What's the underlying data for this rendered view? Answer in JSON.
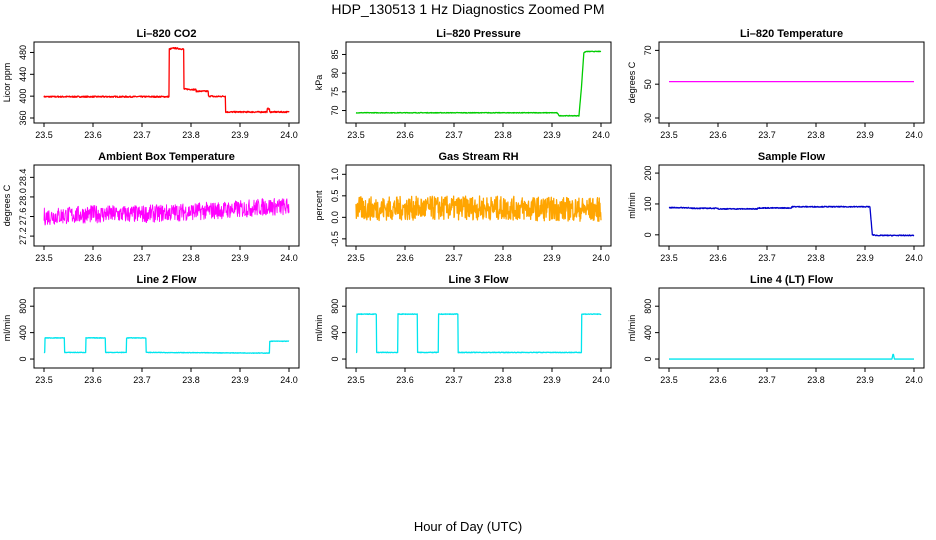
{
  "figure": {
    "title": "HDP_130513  1 Hz Diagnostics Zoomed PM",
    "xlabel": "Hour of Day (UTC)"
  },
  "chart_data": [
    {
      "type": "line",
      "title": "Li–820 CO2",
      "ylabel": "Licor ppm",
      "xlim": [
        23.5,
        24.0
      ],
      "ylim": [
        360,
        490
      ],
      "xticks": [
        "23.5",
        "23.6",
        "23.7",
        "23.8",
        "23.9",
        "24.0"
      ],
      "yticks": [
        "360",
        "400",
        "440",
        "480"
      ],
      "color": "#ff0000",
      "noise": 1.2,
      "series": [
        {
          "x": [
            23.5,
            23.755,
            23.755,
            23.765,
            23.775,
            23.785,
            23.785,
            23.81,
            23.81,
            23.835,
            23.835,
            23.845,
            23.845,
            23.87,
            23.87,
            23.955,
            23.955,
            23.96,
            23.96,
            24.0
          ],
          "y": [
            399,
            399,
            486,
            488,
            487,
            486,
            413,
            412,
            409,
            409,
            400,
            400,
            399,
            400,
            371,
            371,
            378,
            376,
            371,
            371
          ]
        }
      ]
    },
    {
      "type": "line",
      "title": "Li–820 Pressure",
      "ylabel": "kPa",
      "xlim": [
        23.5,
        24.0
      ],
      "ylim": [
        68,
        87
      ],
      "xticks": [
        "23.5",
        "23.6",
        "23.7",
        "23.8",
        "23.9",
        "24.0"
      ],
      "yticks": [
        "70",
        "75",
        "80",
        "85"
      ],
      "color": "#00cc00",
      "noise": 0.08,
      "series": [
        {
          "x": [
            23.5,
            23.91,
            23.915,
            23.955,
            23.96,
            23.965,
            23.97,
            24.0
          ],
          "y": [
            69.4,
            69.4,
            68.6,
            68.6,
            76,
            85.5,
            85.8,
            85.8
          ]
        }
      ]
    },
    {
      "type": "line",
      "title": "Li–820 Temperature",
      "ylabel": "degrees C",
      "xlim": [
        23.5,
        24.0
      ],
      "ylim": [
        30,
        72
      ],
      "xticks": [
        "23.5",
        "23.6",
        "23.7",
        "23.8",
        "23.9",
        "24.0"
      ],
      "yticks": [
        "30",
        "50",
        "70"
      ],
      "color": "#ff00ff",
      "noise": 0,
      "series": [
        {
          "x": [
            23.5,
            24.0
          ],
          "y": [
            51.5,
            51.5
          ]
        }
      ]
    },
    {
      "type": "line",
      "title": "Ambient Box Temperature",
      "ylabel": "degrees C",
      "xlim": [
        23.5,
        24.0
      ],
      "ylim": [
        27.1,
        28.55
      ],
      "xticks": [
        "23.5",
        "23.6",
        "23.7",
        "23.8",
        "23.9",
        "24.0"
      ],
      "yticks": [
        "27.2",
        "27.6",
        "28.0",
        "28.4"
      ],
      "color": "#ff00ff",
      "noise": 0.18,
      "series": [
        {
          "x": [
            23.5,
            23.6,
            23.7,
            23.8,
            23.9,
            23.95,
            24.0
          ],
          "y": [
            27.6,
            27.65,
            27.65,
            27.7,
            27.75,
            27.8,
            27.8
          ]
        }
      ]
    },
    {
      "type": "line",
      "title": "Gas Stream RH",
      "ylabel": "percent",
      "xlim": [
        23.5,
        24.0
      ],
      "ylim": [
        -0.55,
        1.1
      ],
      "xticks": [
        "23.5",
        "23.6",
        "23.7",
        "23.8",
        "23.9",
        "24.0"
      ],
      "yticks": [
        "-0.5",
        "0.0",
        "0.5",
        "1.0"
      ],
      "color": "#ffa500",
      "noise": 0.28,
      "series": [
        {
          "x": [
            23.5,
            23.75,
            24.0
          ],
          "y": [
            0.2,
            0.22,
            0.18
          ]
        }
      ]
    },
    {
      "type": "line",
      "title": "Sample Flow",
      "ylabel": "ml/min",
      "xlim": [
        23.5,
        24.0
      ],
      "ylim": [
        -20,
        210
      ],
      "xticks": [
        "23.5",
        "23.6",
        "23.7",
        "23.8",
        "23.9",
        "24.0"
      ],
      "yticks": [
        "0",
        "100",
        "200"
      ],
      "color": "#0000cc",
      "noise": 1.5,
      "series": [
        {
          "x": [
            23.5,
            23.54,
            23.54,
            23.6,
            23.6,
            23.68,
            23.68,
            23.75,
            23.75,
            23.91,
            23.915,
            23.925,
            24.0
          ],
          "y": [
            88,
            88,
            86,
            86,
            84,
            84,
            87,
            87,
            91,
            91,
            0,
            -2,
            -2
          ]
        }
      ]
    },
    {
      "type": "line",
      "title": "Line 2 Flow",
      "ylabel": "ml/min",
      "xlim": [
        23.5,
        24.0
      ],
      "ylim": [
        -60,
        1000
      ],
      "xticks": [
        "23.5",
        "23.6",
        "23.7",
        "23.8",
        "23.9",
        "24.0"
      ],
      "yticks": [
        "0",
        "400",
        "800"
      ],
      "color": "#00e5ee",
      "noise": 4,
      "series": [
        {
          "x": [
            23.5,
            23.502,
            23.502,
            23.542,
            23.542,
            23.585,
            23.585,
            23.625,
            23.625,
            23.668,
            23.668,
            23.708,
            23.708,
            23.96,
            23.96,
            24.0
          ],
          "y": [
            100,
            100,
            320,
            320,
            100,
            100,
            320,
            320,
            100,
            100,
            320,
            320,
            100,
            90,
            270,
            270
          ]
        }
      ]
    },
    {
      "type": "line",
      "title": "Line 3 Flow",
      "ylabel": "ml/min",
      "xlim": [
        23.5,
        24.0
      ],
      "ylim": [
        -60,
        1000
      ],
      "xticks": [
        "23.5",
        "23.6",
        "23.7",
        "23.8",
        "23.9",
        "24.0"
      ],
      "yticks": [
        "0",
        "400",
        "800"
      ],
      "color": "#00e5ee",
      "noise": 5,
      "series": [
        {
          "x": [
            23.5,
            23.502,
            23.502,
            23.542,
            23.542,
            23.585,
            23.585,
            23.625,
            23.625,
            23.668,
            23.668,
            23.708,
            23.708,
            23.96,
            23.96,
            24.0
          ],
          "y": [
            100,
            100,
            680,
            680,
            100,
            100,
            680,
            680,
            100,
            100,
            680,
            680,
            100,
            100,
            680,
            680
          ]
        }
      ]
    },
    {
      "type": "line",
      "title": "Line 4 (LT) Flow",
      "ylabel": "ml/min",
      "xlim": [
        23.5,
        24.0
      ],
      "ylim": [
        -60,
        1000
      ],
      "xticks": [
        "23.5",
        "23.6",
        "23.7",
        "23.8",
        "23.9",
        "24.0"
      ],
      "yticks": [
        "0",
        "400",
        "800"
      ],
      "color": "#00e5ee",
      "noise": 0,
      "series": [
        {
          "x": [
            23.5,
            23.955,
            23.957,
            23.958,
            23.96,
            24.0
          ],
          "y": [
            0,
            0,
            70,
            70,
            0,
            0
          ]
        }
      ]
    }
  ]
}
